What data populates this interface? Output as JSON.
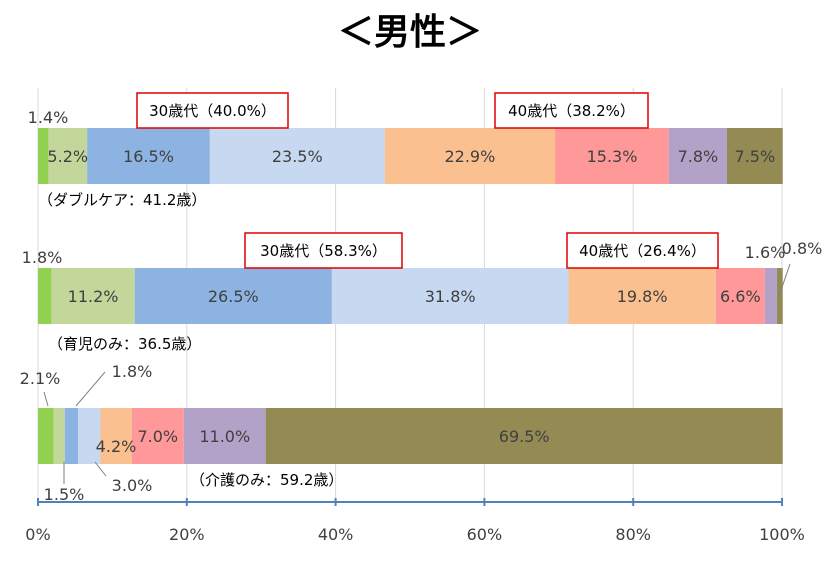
{
  "title": "＜男性＞",
  "chart_data": {
    "type": "bar",
    "stacked": true,
    "orientation": "horizontal",
    "xlim": [
      0,
      100
    ],
    "x_ticks": [
      "0%",
      "20%",
      "40%",
      "60%",
      "80%",
      "100%"
    ],
    "grid": true,
    "segment_colors": [
      "#92d050",
      "#c4d79b",
      "#8db3e2",
      "#c6d9f1",
      "#fac090",
      "#ff9999",
      "#b3a2c7",
      "#948a54"
    ],
    "bars": [
      {
        "label": "（ダブルケア：41.2歳）",
        "values": [
          1.4,
          5.2,
          16.5,
          23.5,
          22.9,
          15.3,
          7.8,
          7.5
        ],
        "value_labels": [
          "1.4%",
          "5.2%",
          "16.5%",
          "23.5%",
          "22.9%",
          "15.3%",
          "7.8%",
          "7.5%"
        ],
        "callouts": [
          "30歳代（40.0%）",
          "40歳代（38.2%）"
        ]
      },
      {
        "label": "（育児のみ：36.5歳）",
        "values": [
          1.8,
          11.2,
          26.5,
          31.8,
          19.8,
          6.6,
          1.6,
          0.8
        ],
        "value_labels": [
          "1.8%",
          "11.2%",
          "26.5%",
          "31.8%",
          "19.8%",
          "6.6%",
          "1.6%",
          "0.8%"
        ],
        "callouts": [
          "30歳代（58.3%）",
          "40歳代（26.4%）"
        ]
      },
      {
        "label": "（介護のみ：59.2歳）",
        "values": [
          2.1,
          1.5,
          1.8,
          3.0,
          4.2,
          7.0,
          11.0,
          69.5
        ],
        "value_labels": [
          "2.1%",
          "1.5%",
          "1.8%",
          "3.0%",
          "4.2%",
          "7.0%",
          "11.0%",
          "69.5%"
        ],
        "callouts": []
      }
    ]
  }
}
